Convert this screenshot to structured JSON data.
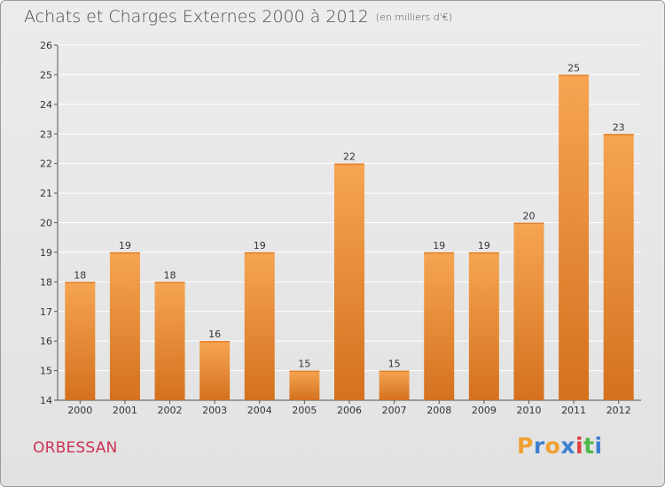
{
  "header": {
    "title": "Achats et Charges Externes 2000 à 2012",
    "unit": "(en milliers d'€)"
  },
  "footer": {
    "commune": "ORBESSAN",
    "brand_letters": [
      "P",
      "r",
      "o",
      "x",
      "i",
      "t",
      "i"
    ],
    "brand_colors": [
      "#f0a030",
      "#3d7fd0",
      "#f0a030",
      "#3d7fd0",
      "#e04040",
      "#50b848",
      "#3d7fd0"
    ]
  },
  "chart_data": {
    "type": "bar",
    "title": "Achats et Charges Externes 2000 à 2012",
    "subtitle": "(en milliers d'€)",
    "xlabel": "",
    "ylabel": "",
    "categories": [
      "2000",
      "2001",
      "2002",
      "2003",
      "2004",
      "2005",
      "2006",
      "2007",
      "2008",
      "2009",
      "2010",
      "2011",
      "2012"
    ],
    "values": [
      18,
      19,
      18,
      16,
      19,
      15,
      22,
      15,
      19,
      19,
      20,
      25,
      23
    ],
    "ylim": [
      14,
      26
    ],
    "yticks": [
      14,
      15,
      16,
      17,
      18,
      19,
      20,
      21,
      22,
      23,
      24,
      25,
      26
    ],
    "grid": true,
    "bar_color": "#f0943a",
    "bar_color_dark": "#d8731f",
    "gridline_color": "#ffffff"
  }
}
